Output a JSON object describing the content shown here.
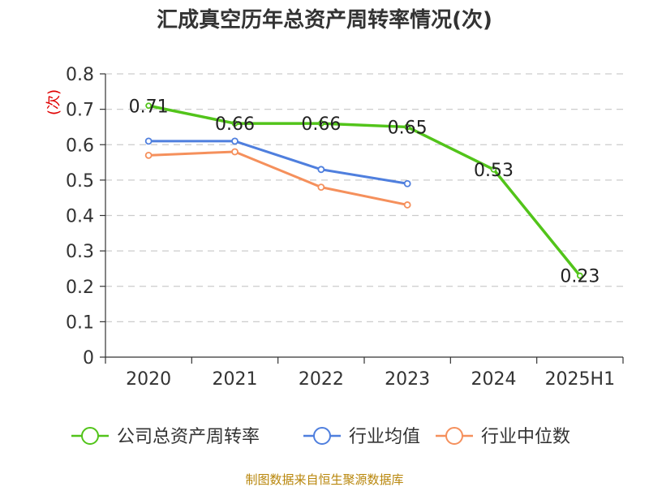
{
  "chart_data": {
    "type": "line",
    "title": "汇成真空历年总资产周转率情况(次)",
    "ylabel": "(次)",
    "xlabel": "",
    "categories": [
      "2020",
      "2021",
      "2022",
      "2023",
      "2024",
      "2025H1"
    ],
    "ylim": [
      0,
      0.8
    ],
    "yticks": [
      "0",
      "0.1",
      "0.2",
      "0.3",
      "0.4",
      "0.5",
      "0.6",
      "0.7",
      "0.8"
    ],
    "grid": true,
    "legend_position": "bottom",
    "series": [
      {
        "name": "公司总资产周转率",
        "color": "#52c41a",
        "values": [
          0.71,
          0.66,
          0.66,
          0.65,
          0.53,
          0.23
        ],
        "show_labels": true
      },
      {
        "name": "行业均值",
        "color": "#4f7fde",
        "values": [
          0.61,
          0.61,
          0.53,
          0.49,
          null,
          null
        ],
        "show_labels": false
      },
      {
        "name": "行业中位数",
        "color": "#f5905c",
        "values": [
          0.57,
          0.58,
          0.48,
          0.43,
          null,
          null
        ],
        "show_labels": false
      }
    ],
    "data_labels": [
      "0.71",
      "0.66",
      "0.66",
      "0.65",
      "0.53",
      "0.23"
    ]
  },
  "source": "制图数据来自恒生聚源数据库"
}
